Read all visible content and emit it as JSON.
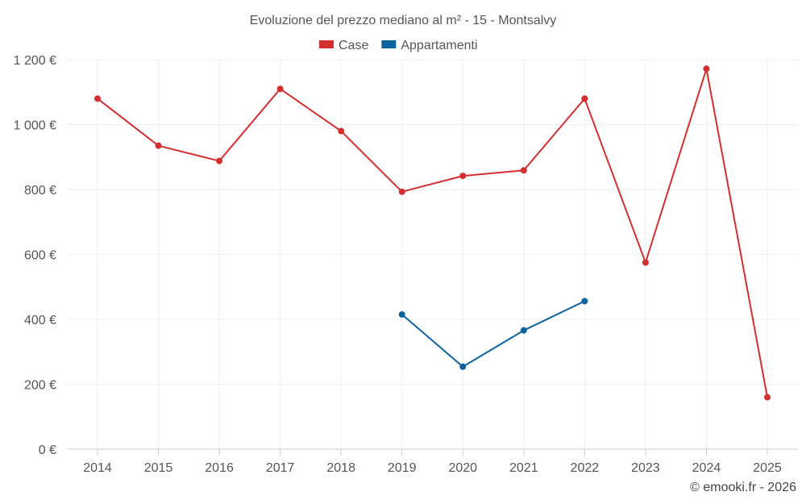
{
  "chart_data": {
    "type": "line",
    "title": "Evoluzione del prezzo mediano al m² - 15 - Montsalvy",
    "categories": [
      "2014",
      "2015",
      "2016",
      "2017",
      "2018",
      "2019",
      "2020",
      "2021",
      "2022",
      "2023",
      "2024",
      "2025"
    ],
    "ylim": [
      0,
      1200
    ],
    "yticks": [
      0,
      200,
      400,
      600,
      800,
      1000,
      1200
    ],
    "ytick_labels": [
      "0 €",
      "200 €",
      "400 €",
      "600 €",
      "800 €",
      "1 000 €",
      "1 200 €"
    ],
    "legend_position": "top-center",
    "grid": true,
    "series": [
      {
        "name": "Case",
        "color": "#d32f2f",
        "values": [
          1080,
          935,
          888,
          1110,
          980,
          793,
          842,
          859,
          1080,
          575,
          1172,
          160
        ]
      },
      {
        "name": "Appartamenti",
        "color": "#0b64a0",
        "values": [
          null,
          null,
          null,
          null,
          null,
          415,
          254,
          366,
          456,
          null,
          null,
          null
        ]
      }
    ]
  },
  "credit": "© emooki.fr - 2026"
}
